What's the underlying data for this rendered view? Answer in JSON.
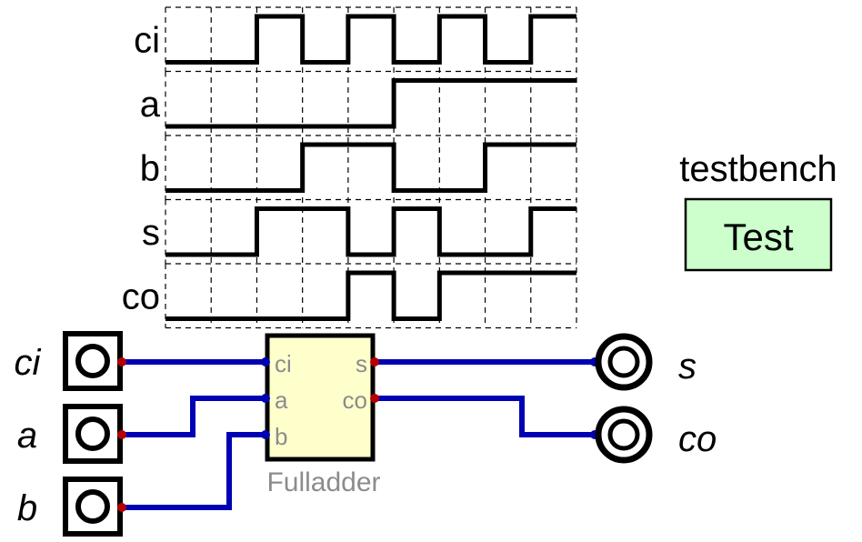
{
  "waveform": {
    "steps": 9,
    "signals": [
      {
        "name": "ci",
        "values": [
          0,
          0,
          1,
          0,
          1,
          0,
          1,
          0,
          1
        ]
      },
      {
        "name": "a",
        "values": [
          0,
          0,
          0,
          0,
          0,
          1,
          1,
          1,
          1
        ]
      },
      {
        "name": "b",
        "values": [
          0,
          0,
          0,
          1,
          1,
          0,
          0,
          1,
          1
        ]
      },
      {
        "name": "s",
        "values": [
          0,
          0,
          1,
          1,
          0,
          1,
          0,
          0,
          1
        ]
      },
      {
        "name": "co",
        "values": [
          0,
          0,
          0,
          0,
          1,
          0,
          1,
          1,
          1
        ]
      }
    ]
  },
  "testbench": {
    "title": "testbench",
    "button_label": "Test",
    "button_color": "#ccffcc"
  },
  "circuit": {
    "component_name": "Fulladder",
    "component_fill": "#ffffcc",
    "wire_color": "#0000b4",
    "port_dot_color": "#b40000",
    "input_ports": [
      "ci",
      "a",
      "b"
    ],
    "output_ports": [
      "s",
      "co"
    ],
    "inputs": [
      {
        "label": "ci"
      },
      {
        "label": "a"
      },
      {
        "label": "b"
      }
    ],
    "outputs": [
      {
        "label": "s"
      },
      {
        "label": "co"
      }
    ]
  }
}
